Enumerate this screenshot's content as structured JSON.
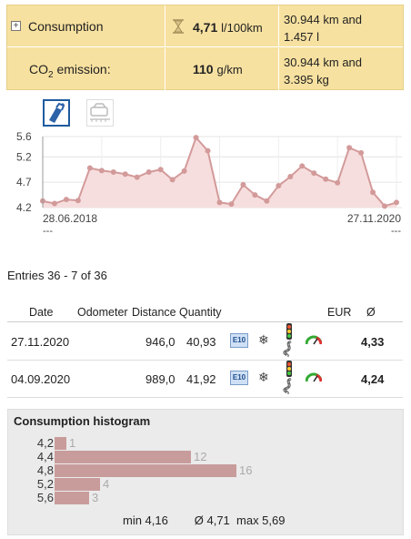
{
  "summary": {
    "consumption": {
      "label": "Consumption",
      "value": "4,71",
      "unit": "l/100km",
      "extra_line1": "30.944 km and",
      "extra_line2": "1.457 l"
    },
    "co2": {
      "label_prefix": "CO",
      "label_sub": "2",
      "label_suffix": " emission:",
      "value": "110",
      "unit": "g/km",
      "extra_line1": "30.944 km and",
      "extra_line2": "3.395 kg"
    }
  },
  "chart_tabs": [
    {
      "icon": "fuel-pump-icon",
      "active": true
    },
    {
      "icon": "car-service-icon",
      "active": false
    }
  ],
  "chart_data": {
    "type": "area",
    "ylim": [
      4.2,
      5.6
    ],
    "yticks": [
      "5.6",
      "5.2",
      "4.7",
      "4.2"
    ],
    "ytick_values": [
      5.6,
      5.2,
      4.7,
      4.2
    ],
    "x_start_label": "28.06.2018",
    "x_end_label": "27.11.2020",
    "x_start_sub": "---",
    "x_end_sub": "---",
    "values": [
      4.33,
      4.28,
      4.36,
      4.34,
      4.98,
      4.93,
      4.9,
      4.86,
      4.8,
      4.9,
      4.95,
      4.75,
      4.92,
      5.58,
      5.32,
      4.3,
      4.27,
      4.65,
      4.45,
      4.33,
      4.63,
      4.81,
      5.02,
      4.88,
      4.76,
      4.69,
      5.38,
      5.28,
      4.5,
      4.23,
      4.3
    ],
    "line_color": "#d39a9a",
    "fill_color": "#f7dede",
    "grid": true
  },
  "entries_text": "Entries 36 - 7 of 36",
  "table": {
    "headers": {
      "date": "Date",
      "odometer": "Odometer",
      "distance": "Distance",
      "quantity": "Quantity",
      "eur": "EUR",
      "avg": "Ø"
    },
    "rows": [
      {
        "date": "27.11.2020",
        "distance": "946,0",
        "quantity": "40,93",
        "fuel": "E10",
        "avg": "4,33"
      },
      {
        "date": "04.09.2020",
        "distance": "989,0",
        "quantity": "41,92",
        "fuel": "E10",
        "avg": "4,24"
      }
    ]
  },
  "histogram": {
    "title": "Consumption histogram",
    "bars": [
      {
        "label": "4,2",
        "count": 1,
        "count_label": "1"
      },
      {
        "label": "4,4",
        "count": 12,
        "count_label": "12"
      },
      {
        "label": "4,8",
        "count": 16,
        "count_label": "16"
      },
      {
        "label": "5,2",
        "count": 4,
        "count_label": "4"
      },
      {
        "label": "5,6",
        "count": 3,
        "count_label": "3"
      }
    ],
    "max_count": 16,
    "bar_color": "#c99c9c",
    "stats": "min 4,16        Ø 4,71  max 5,69"
  }
}
